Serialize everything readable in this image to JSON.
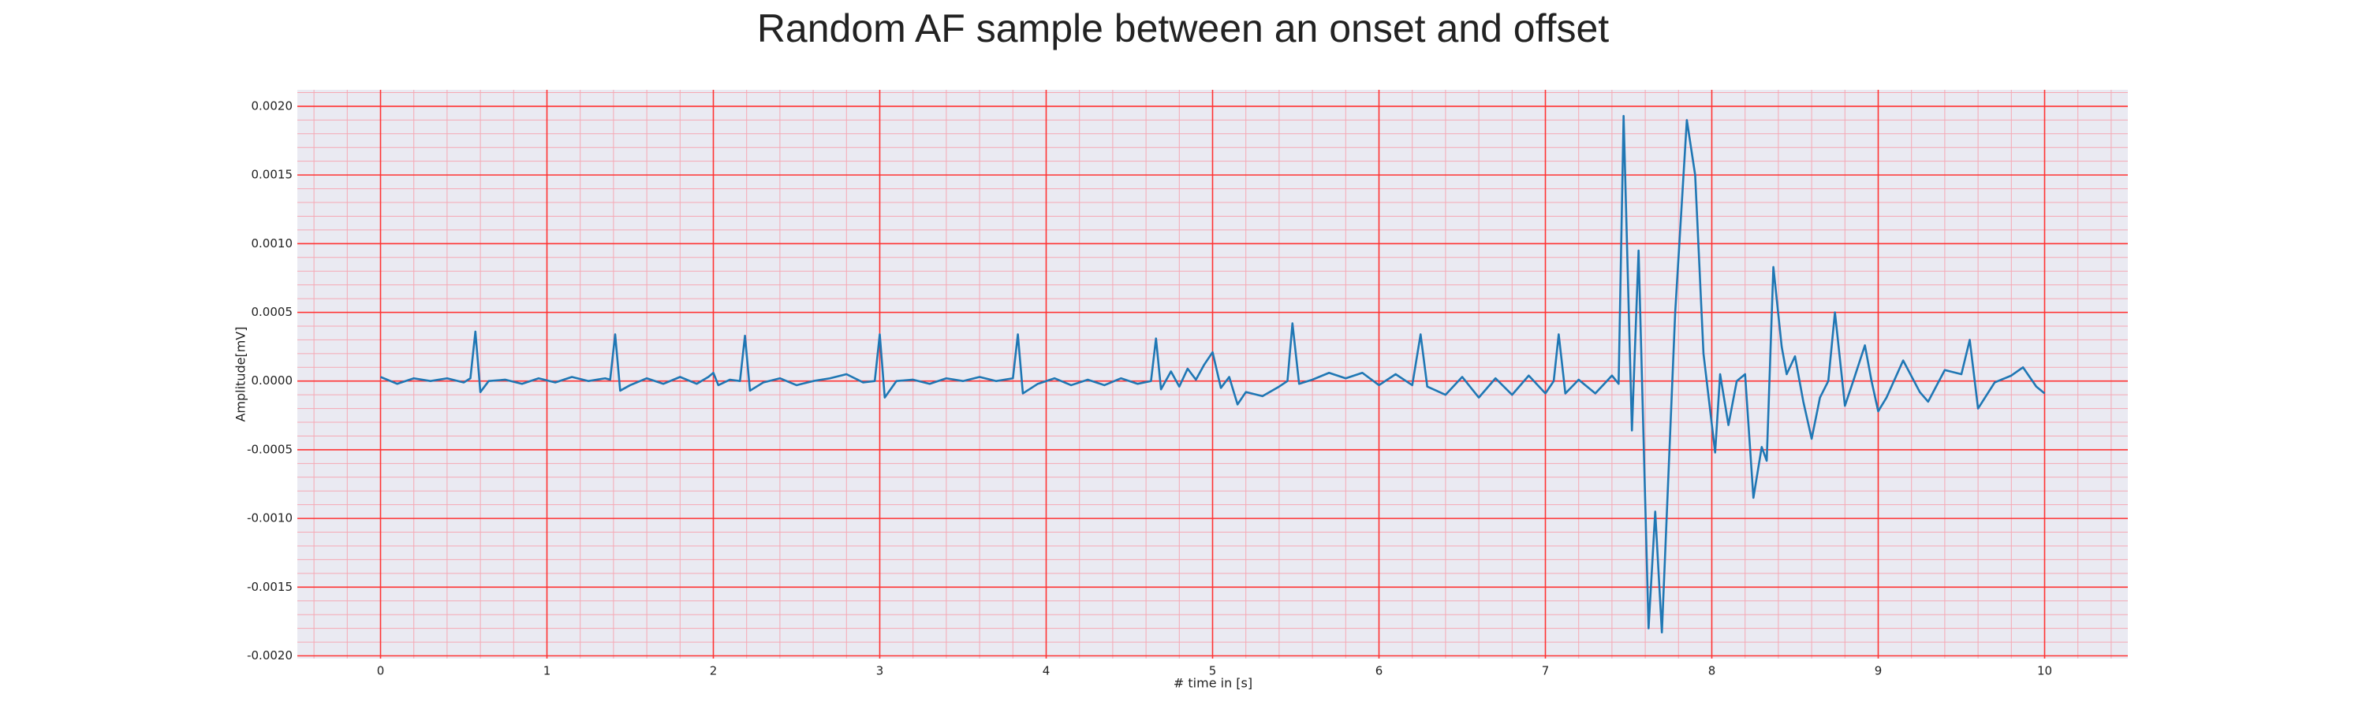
{
  "chart_data": {
    "type": "line",
    "title": "Random AF sample between an onset and offset",
    "xlabel": "# time in [s]",
    "ylabel": "Amplitude[mV]",
    "color": "#1f77b4",
    "background": "#eaeaf2",
    "grid": true,
    "grid_color": "#ff3333",
    "minor_grid_color": "#f5a8b4",
    "xlim": [
      -0.5,
      10.5
    ],
    "ylim": [
      -0.00202,
      0.00212
    ],
    "xticks": [
      0,
      1,
      2,
      3,
      4,
      5,
      6,
      7,
      8,
      9,
      10
    ],
    "yticks": [
      {
        "value": -0.002,
        "label": "-0.0020"
      },
      {
        "value": -0.0015,
        "label": "-0.0015"
      },
      {
        "value": -0.001,
        "label": "-0.0010"
      },
      {
        "value": -0.0005,
        "label": "-0.0005"
      },
      {
        "value": 0,
        "label": "0.0000"
      },
      {
        "value": 0.0005,
        "label": "0.0005"
      },
      {
        "value": 0.001,
        "label": "0.0010"
      },
      {
        "value": 0.0015,
        "label": "0.0015"
      },
      {
        "value": 0.002,
        "label": "0.0020"
      }
    ],
    "minor_xticks": [
      -0.4,
      -0.2,
      0.2,
      0.4,
      0.6,
      0.8,
      1.2,
      1.4,
      1.6,
      1.8,
      2.2,
      2.4,
      2.6,
      2.8,
      3.2,
      3.4,
      3.6,
      3.8,
      4.2,
      4.4,
      4.6,
      4.8,
      5.2,
      5.4,
      5.6,
      5.8,
      6.2,
      6.4,
      6.6,
      6.8,
      7.2,
      7.4,
      7.6,
      7.8,
      8.2,
      8.4,
      8.6,
      8.8,
      9.2,
      9.4,
      9.6,
      9.8,
      10.2,
      10.4
    ],
    "minor_yticks": [
      -0.0019,
      -0.0018,
      -0.0017,
      -0.0016,
      -0.0014,
      -0.0013,
      -0.0012,
      -0.0011,
      -0.0009,
      -0.0008,
      -0.0007,
      -0.0006,
      -0.0004,
      -0.0003,
      -0.0002,
      -0.0001,
      0.0001,
      0.0002,
      0.0003,
      0.0004,
      0.0006,
      0.0007,
      0.0008,
      0.0009,
      0.0011,
      0.0012,
      0.0013,
      0.0014,
      0.0016,
      0.0017,
      0.0018,
      0.0019,
      0.0021
    ],
    "x": [
      0,
      0.1,
      0.2,
      0.3,
      0.4,
      0.5,
      0.54,
      0.57,
      0.6,
      0.65,
      0.75,
      0.85,
      0.95,
      1.05,
      1.15,
      1.25,
      1.35,
      1.38,
      1.41,
      1.44,
      1.5,
      1.6,
      1.7,
      1.8,
      1.9,
      1.97,
      2.0,
      2.03,
      2.1,
      2.16,
      2.19,
      2.22,
      2.3,
      2.4,
      2.5,
      2.6,
      2.7,
      2.8,
      2.9,
      2.97,
      3.0,
      3.03,
      3.1,
      3.2,
      3.3,
      3.4,
      3.5,
      3.6,
      3.7,
      3.8,
      3.83,
      3.86,
      3.95,
      4.05,
      4.15,
      4.25,
      4.35,
      4.45,
      4.55,
      4.63,
      4.66,
      4.69,
      4.75,
      4.8,
      4.85,
      4.9,
      4.95,
      5.0,
      5.05,
      5.1,
      5.15,
      5.2,
      5.3,
      5.4,
      5.45,
      5.48,
      5.52,
      5.6,
      5.7,
      5.8,
      5.9,
      6.0,
      6.1,
      6.2,
      6.25,
      6.29,
      6.4,
      6.5,
      6.6,
      6.7,
      6.8,
      6.9,
      7.0,
      7.05,
      7.08,
      7.12,
      7.2,
      7.3,
      7.4,
      7.44,
      7.47,
      7.52,
      7.56,
      7.62,
      7.66,
      7.7,
      7.78,
      7.85,
      7.9,
      7.95,
      8.02,
      8.05,
      8.1,
      8.15,
      8.2,
      8.25,
      8.3,
      8.33,
      8.37,
      8.42,
      8.45,
      8.5,
      8.55,
      8.6,
      8.65,
      8.7,
      8.74,
      8.8,
      8.85,
      8.92,
      8.96,
      9.0,
      9.05,
      9.15,
      9.25,
      9.3,
      9.4,
      9.5,
      9.55,
      9.6,
      9.7,
      9.8,
      9.87,
      9.95,
      10.0
    ],
    "values": [
      3e-05,
      -2e-05,
      2e-05,
      0.0,
      2e-05,
      -1e-05,
      2e-05,
      0.00036,
      -8e-05,
      0.0,
      1e-05,
      -2e-05,
      2e-05,
      -1e-05,
      3e-05,
      0.0,
      2e-05,
      1e-05,
      0.00034,
      -7e-05,
      -3e-05,
      2e-05,
      -2e-05,
      3e-05,
      -2e-05,
      3e-05,
      6e-05,
      -3e-05,
      1e-05,
      0.0,
      0.00033,
      -7e-05,
      -1e-05,
      2e-05,
      -3e-05,
      0.0,
      2e-05,
      5e-05,
      -1e-05,
      0.0,
      0.00034,
      -0.00012,
      0.0,
      1e-05,
      -2e-05,
      2e-05,
      0.0,
      3e-05,
      0.0,
      2e-05,
      0.00034,
      -9e-05,
      -2e-05,
      2e-05,
      -3e-05,
      1e-05,
      -3e-05,
      2e-05,
      -2e-05,
      0.0,
      0.00031,
      -6e-05,
      7e-05,
      -4e-05,
      9e-05,
      1e-05,
      0.00012,
      0.00021,
      -5e-05,
      3e-05,
      -0.00017,
      -8e-05,
      -0.00011,
      -4e-05,
      0.0,
      0.00042,
      -2e-05,
      1e-05,
      6e-05,
      2e-05,
      6e-05,
      -3e-05,
      5e-05,
      -3e-05,
      0.00034,
      -4e-05,
      -0.0001,
      3e-05,
      -0.00012,
      2e-05,
      -0.0001,
      4e-05,
      -9e-05,
      0.0,
      0.00034,
      -9e-05,
      1e-05,
      -9e-05,
      4e-05,
      -2e-05,
      0.00193,
      -0.00036,
      0.00095,
      -0.0018,
      -0.00095,
      -0.00183,
      0.0005,
      0.0019,
      0.0015,
      0.0002,
      -0.00052,
      5e-05,
      -0.00032,
      0.0,
      5e-05,
      -0.00085,
      -0.00048,
      -0.00058,
      0.00083,
      0.00025,
      5e-05,
      0.00018,
      -0.00015,
      -0.00042,
      -0.00012,
      0.0,
      0.0005,
      -0.00018,
      0.0,
      0.00026,
      0.0,
      -0.00022,
      -0.00012,
      0.00015,
      -8e-05,
      -0.00015,
      8e-05,
      5e-05,
      0.0003,
      -0.0002,
      -1e-05,
      4e-05,
      0.0001,
      -4e-05,
      -9e-05
    ]
  }
}
